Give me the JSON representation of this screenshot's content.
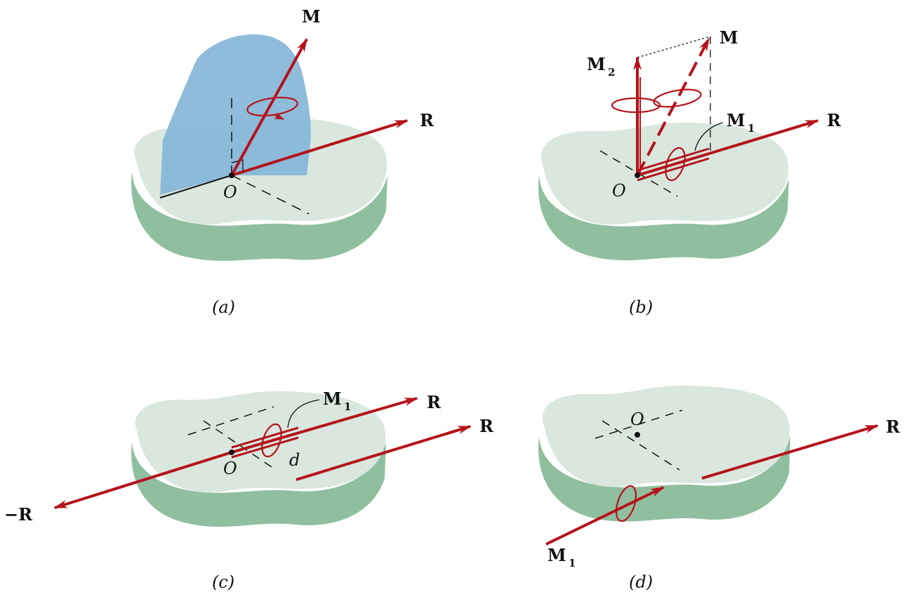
{
  "colors": {
    "vector": "#b5121b",
    "plate_top": "#d9e7de",
    "plate_side": "#8fbf9f",
    "plane": "#88b8d8",
    "ink": "#111111"
  },
  "panels": [
    {
      "id": "a",
      "caption": "(a)",
      "labels": {
        "M": "M",
        "R": "R",
        "O": "O"
      }
    },
    {
      "id": "b",
      "caption": "(b)",
      "labels": {
        "M": "M",
        "M2": "M",
        "M2_sub": "2",
        "M1": "M",
        "M1_sub": "1",
        "R": "R",
        "O": "O"
      }
    },
    {
      "id": "c",
      "caption": "(c)",
      "labels": {
        "M1": "M",
        "M1_sub": "1",
        "R_top": "R",
        "R_mid": "R",
        "negR": "−R",
        "O": "O",
        "d": "d"
      }
    },
    {
      "id": "d",
      "caption": "(d)",
      "labels": {
        "O": "O",
        "R": "R",
        "M1": "M",
        "M1_sub": "1"
      }
    }
  ]
}
